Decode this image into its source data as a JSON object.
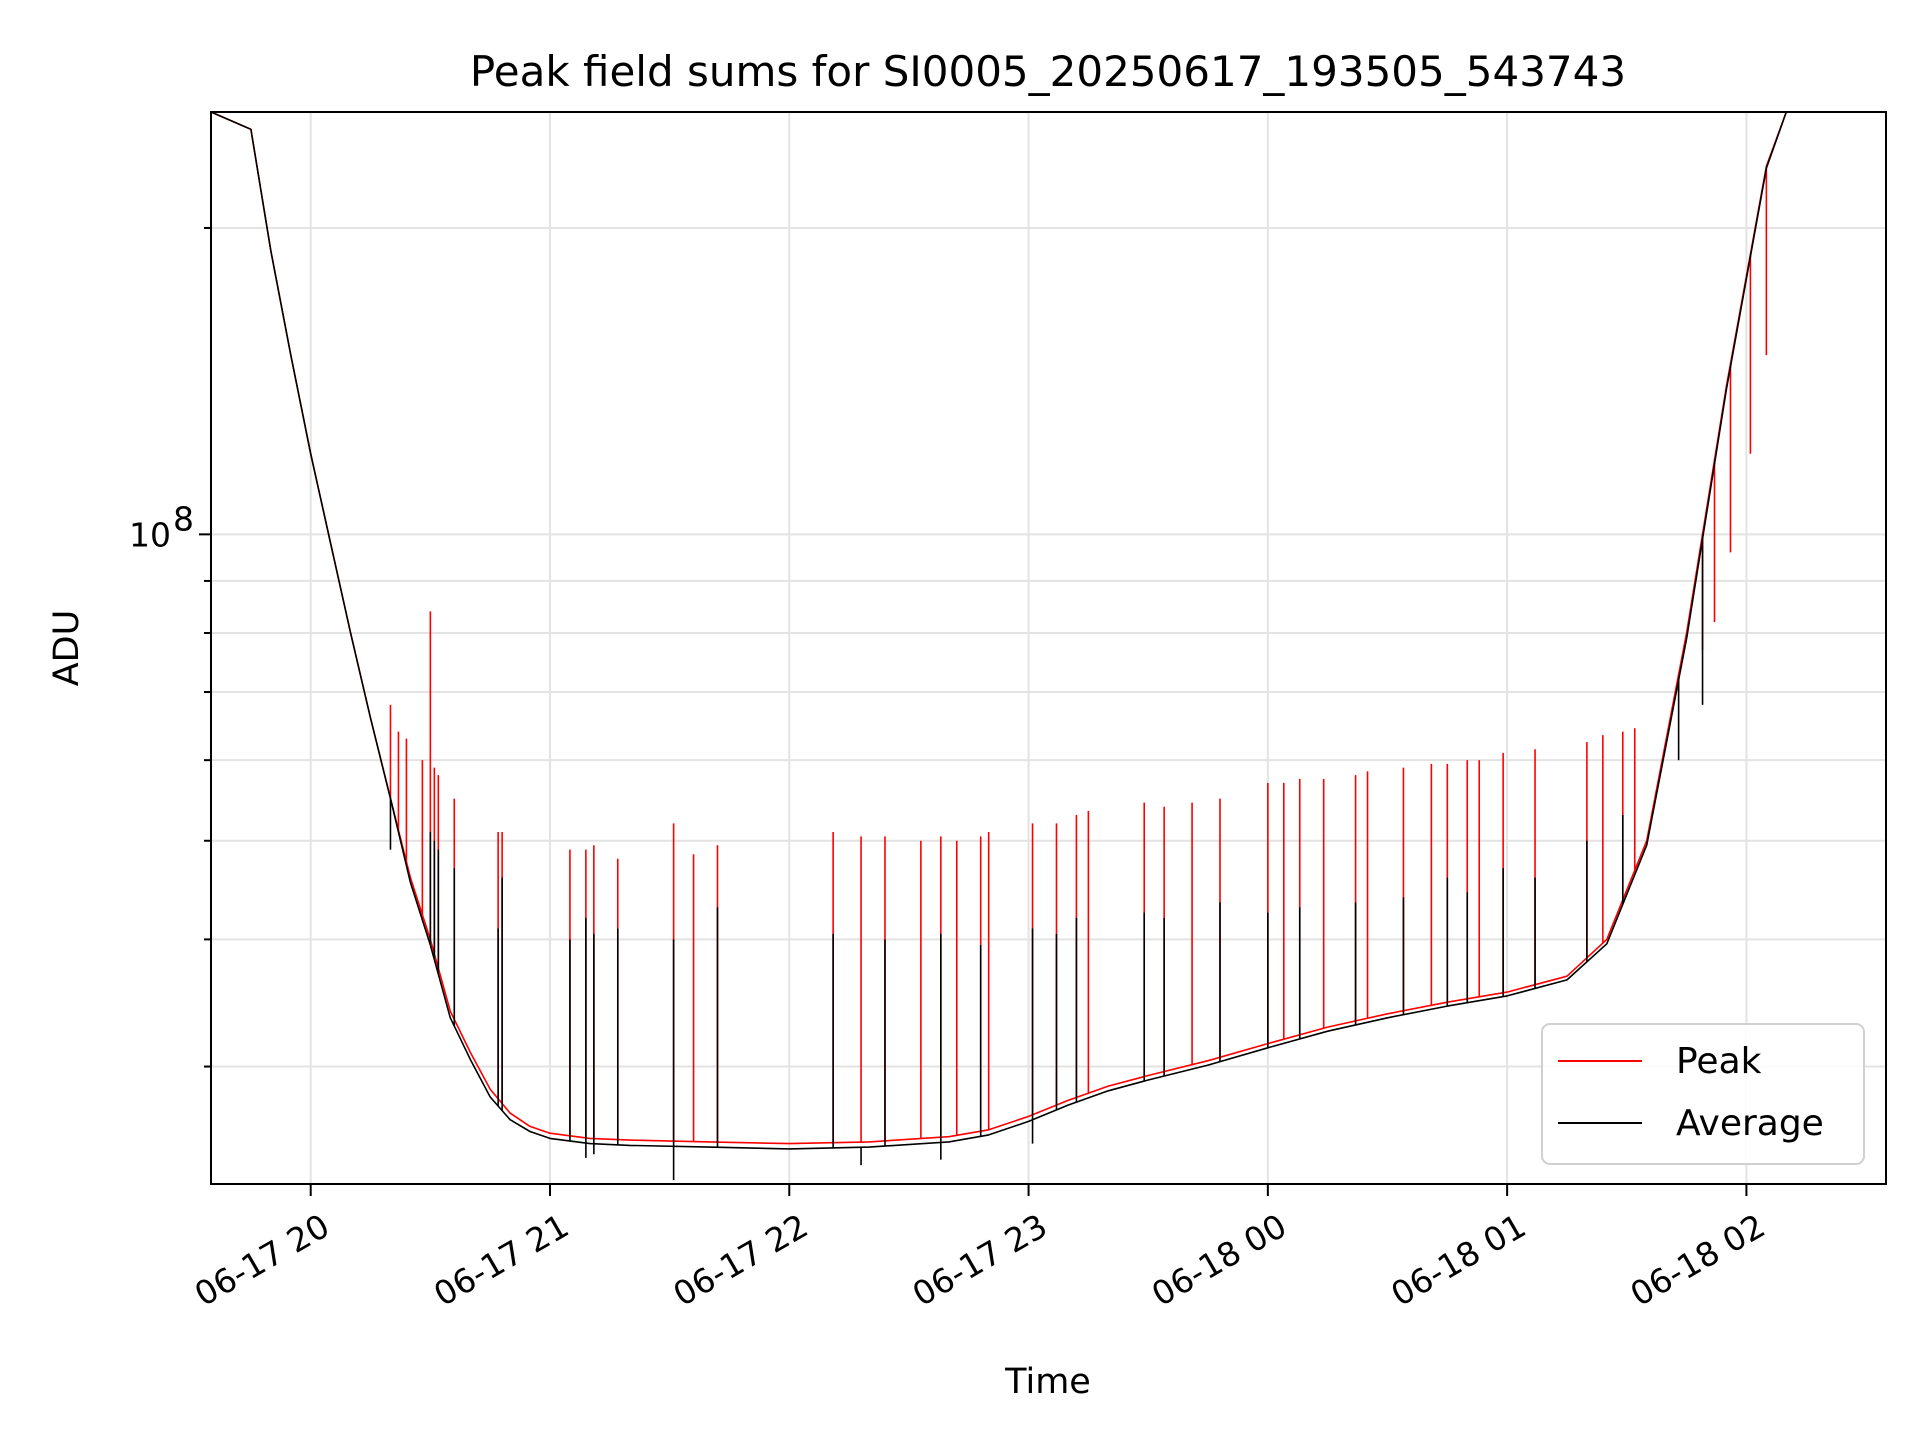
{
  "chart_data": {
    "type": "line",
    "title": "Peak field sums for SI0005_20250617_193505_543743",
    "xlabel": "Time",
    "ylabel": "ADU",
    "x_type": "time",
    "xlim": [
      "2025-06-17 19:35",
      "2025-06-18 02:35"
    ],
    "x_ticks": [
      {
        "value": "2025-06-17 20:00",
        "label": "06-17 20"
      },
      {
        "value": "2025-06-17 21:00",
        "label": "06-17 21"
      },
      {
        "value": "2025-06-17 22:00",
        "label": "06-17 22"
      },
      {
        "value": "2025-06-17 23:00",
        "label": "06-17 23"
      },
      {
        "value": "2025-06-18 00:00",
        "label": "06-18 00"
      },
      {
        "value": "2025-06-18 01:00",
        "label": "06-18 01"
      },
      {
        "value": "2025-06-18 02:00",
        "label": "06-18 02"
      }
    ],
    "y_scale": "log",
    "ylim": [
      23000000,
      260000000
    ],
    "y_ticks": [
      {
        "value": 100000000,
        "label_base": "10",
        "label_exp": "8"
      }
    ],
    "y_minor_ticks": [
      30000000,
      40000000,
      50000000,
      60000000,
      70000000,
      80000000,
      90000000,
      200000000
    ],
    "grid": true,
    "legend_position": "lower right",
    "series": [
      {
        "name": "Peak",
        "color": "#ff0000",
        "points": [
          [
            "2025-06-17 19:35",
            260000000
          ],
          [
            "2025-06-17 19:45",
            250000000
          ],
          [
            "2025-06-17 19:50",
            190000000
          ],
          [
            "2025-06-17 19:55",
            150000000
          ],
          [
            "2025-06-17 20:00",
            120000000
          ],
          [
            "2025-06-17 20:05",
            98000000
          ],
          [
            "2025-06-17 20:10",
            80000000
          ],
          [
            "2025-06-17 20:15",
            66000000
          ],
          [
            "2025-06-17 20:20",
            55000000
          ],
          [
            "2025-06-17 20:25",
            46000000
          ],
          [
            "2025-06-17 20:30",
            40000000
          ],
          [
            "2025-06-17 20:35",
            34000000
          ],
          [
            "2025-06-17 20:40",
            31000000
          ],
          [
            "2025-06-17 20:45",
            28500000
          ],
          [
            "2025-06-17 20:50",
            27000000
          ],
          [
            "2025-06-17 20:55",
            26200000
          ],
          [
            "2025-06-17 21:00",
            25800000
          ],
          [
            "2025-06-17 21:10",
            25500000
          ],
          [
            "2025-06-17 21:20",
            25400000
          ],
          [
            "2025-06-17 21:40",
            25300000
          ],
          [
            "2025-06-17 22:00",
            25200000
          ],
          [
            "2025-06-17 22:20",
            25300000
          ],
          [
            "2025-06-17 22:40",
            25600000
          ],
          [
            "2025-06-17 22:50",
            26000000
          ],
          [
            "2025-06-17 23:00",
            26800000
          ],
          [
            "2025-06-17 23:10",
            27800000
          ],
          [
            "2025-06-17 23:20",
            28700000
          ],
          [
            "2025-06-17 23:30",
            29400000
          ],
          [
            "2025-06-17 23:45",
            30400000
          ],
          [
            "2025-06-18 00:00",
            31600000
          ],
          [
            "2025-06-18 00:15",
            32800000
          ],
          [
            "2025-06-18 00:30",
            33800000
          ],
          [
            "2025-06-18 00:45",
            34700000
          ],
          [
            "2025-06-18 01:00",
            35500000
          ],
          [
            "2025-06-18 01:15",
            36800000
          ],
          [
            "2025-06-18 01:25",
            40000000
          ],
          [
            "2025-06-18 01:35",
            50000000
          ],
          [
            "2025-06-18 01:45",
            80000000
          ],
          [
            "2025-06-18 01:55",
            140000000
          ],
          [
            "2025-06-18 02:05",
            230000000
          ],
          [
            "2025-06-18 02:10",
            260000000
          ],
          [
            "2025-06-18 02:35",
            260000000
          ]
        ],
        "spikes": [
          [
            "2025-06-17 20:20",
            68000000
          ],
          [
            "2025-06-17 20:22",
            64000000
          ],
          [
            "2025-06-17 20:24",
            63000000
          ],
          [
            "2025-06-17 20:28",
            60000000
          ],
          [
            "2025-06-17 20:30",
            84000000
          ],
          [
            "2025-06-17 20:31",
            59000000
          ],
          [
            "2025-06-17 20:32",
            58000000
          ],
          [
            "2025-06-17 20:36",
            55000000
          ],
          [
            "2025-06-17 20:47",
            51000000
          ],
          [
            "2025-06-17 20:48",
            51000000
          ],
          [
            "2025-06-17 21:05",
            49000000
          ],
          [
            "2025-06-17 21:09",
            49000000
          ],
          [
            "2025-06-17 21:11",
            49500000
          ],
          [
            "2025-06-17 21:17",
            48000000
          ],
          [
            "2025-06-17 21:31",
            52000000
          ],
          [
            "2025-06-17 21:36",
            48500000
          ],
          [
            "2025-06-17 21:42",
            49500000
          ],
          [
            "2025-06-17 22:11",
            51000000
          ],
          [
            "2025-06-17 22:18",
            50500000
          ],
          [
            "2025-06-17 22:24",
            50500000
          ],
          [
            "2025-06-17 22:33",
            50000000
          ],
          [
            "2025-06-17 22:38",
            50500000
          ],
          [
            "2025-06-17 22:42",
            50000000
          ],
          [
            "2025-06-17 22:48",
            50500000
          ],
          [
            "2025-06-17 22:50",
            51000000
          ],
          [
            "2025-06-17 23:01",
            52000000
          ],
          [
            "2025-06-17 23:07",
            52000000
          ],
          [
            "2025-06-17 23:12",
            53000000
          ],
          [
            "2025-06-17 23:15",
            53500000
          ],
          [
            "2025-06-17 23:29",
            54500000
          ],
          [
            "2025-06-17 23:34",
            54000000
          ],
          [
            "2025-06-17 23:41",
            54500000
          ],
          [
            "2025-06-17 23:48",
            55000000
          ],
          [
            "2025-06-18 00:00",
            57000000
          ],
          [
            "2025-06-18 00:04",
            57000000
          ],
          [
            "2025-06-18 00:08",
            57500000
          ],
          [
            "2025-06-18 00:14",
            57500000
          ],
          [
            "2025-06-18 00:22",
            58000000
          ],
          [
            "2025-06-18 00:25",
            58500000
          ],
          [
            "2025-06-18 00:34",
            59000000
          ],
          [
            "2025-06-18 00:41",
            59500000
          ],
          [
            "2025-06-18 00:45",
            59500000
          ],
          [
            "2025-06-18 00:50",
            60000000
          ],
          [
            "2025-06-18 00:53",
            60000000
          ],
          [
            "2025-06-18 00:59",
            61000000
          ],
          [
            "2025-06-18 01:07",
            61500000
          ],
          [
            "2025-06-18 01:20",
            62500000
          ],
          [
            "2025-06-18 01:24",
            63500000
          ],
          [
            "2025-06-18 01:29",
            64000000
          ],
          [
            "2025-06-18 01:32",
            64500000
          ],
          [
            "2025-06-18 01:43",
            70000000
          ],
          [
            "2025-06-18 01:49",
            77000000
          ],
          [
            "2025-06-18 01:52",
            82000000
          ],
          [
            "2025-06-18 01:56",
            96000000
          ],
          [
            "2025-06-18 02:01",
            120000000
          ],
          [
            "2025-06-18 02:05",
            150000000
          ]
        ]
      },
      {
        "name": "Average",
        "color": "#000000",
        "points": [
          [
            "2025-06-17 19:35",
            260000000
          ],
          [
            "2025-06-17 19:45",
            250000000
          ],
          [
            "2025-06-17 19:50",
            190000000
          ],
          [
            "2025-06-17 19:55",
            150000000
          ],
          [
            "2025-06-17 20:00",
            120000000
          ],
          [
            "2025-06-17 20:05",
            98000000
          ],
          [
            "2025-06-17 20:10",
            80000000
          ],
          [
            "2025-06-17 20:15",
            66000000
          ],
          [
            "2025-06-17 20:20",
            55000000
          ],
          [
            "2025-06-17 20:25",
            45500000
          ],
          [
            "2025-06-17 20:30",
            39500000
          ],
          [
            "2025-06-17 20:35",
            33500000
          ],
          [
            "2025-06-17 20:40",
            30500000
          ],
          [
            "2025-06-17 20:45",
            28000000
          ],
          [
            "2025-06-17 20:50",
            26600000
          ],
          [
            "2025-06-17 20:55",
            25900000
          ],
          [
            "2025-06-17 21:00",
            25500000
          ],
          [
            "2025-06-17 21:10",
            25200000
          ],
          [
            "2025-06-17 21:20",
            25100000
          ],
          [
            "2025-06-17 21:40",
            25000000
          ],
          [
            "2025-06-17 22:00",
            24900000
          ],
          [
            "2025-06-17 22:20",
            25000000
          ],
          [
            "2025-06-17 22:40",
            25300000
          ],
          [
            "2025-06-17 22:50",
            25700000
          ],
          [
            "2025-06-17 23:00",
            26500000
          ],
          [
            "2025-06-17 23:10",
            27500000
          ],
          [
            "2025-06-17 23:20",
            28400000
          ],
          [
            "2025-06-17 23:30",
            29100000
          ],
          [
            "2025-06-17 23:45",
            30100000
          ],
          [
            "2025-06-18 00:00",
            31300000
          ],
          [
            "2025-06-18 00:15",
            32500000
          ],
          [
            "2025-06-18 00:30",
            33500000
          ],
          [
            "2025-06-18 00:45",
            34400000
          ],
          [
            "2025-06-18 01:00",
            35200000
          ],
          [
            "2025-06-18 01:15",
            36500000
          ],
          [
            "2025-06-18 01:25",
            39600000
          ],
          [
            "2025-06-18 01:35",
            49500000
          ],
          [
            "2025-06-18 01:45",
            79000000
          ],
          [
            "2025-06-18 01:55",
            139000000
          ],
          [
            "2025-06-18 02:05",
            229000000
          ],
          [
            "2025-06-18 02:10",
            260000000
          ],
          [
            "2025-06-18 02:35",
            260000000
          ]
        ],
        "spikes": [
          [
            "2025-06-17 20:20",
            49000000
          ],
          [
            "2025-06-17 20:30",
            51000000
          ],
          [
            "2025-06-17 20:31",
            50000000
          ],
          [
            "2025-06-17 20:32",
            49000000
          ],
          [
            "2025-06-17 20:36",
            47000000
          ],
          [
            "2025-06-17 20:47",
            41000000
          ],
          [
            "2025-06-17 20:48",
            46000000
          ],
          [
            "2025-06-17 21:05",
            40000000
          ],
          [
            "2025-06-17 21:09",
            42000000
          ],
          [
            "2025-06-17 21:11",
            40500000
          ],
          [
            "2025-06-17 21:17",
            41000000
          ],
          [
            "2025-06-17 21:31",
            40000000
          ],
          [
            "2025-06-17 21:42",
            43000000
          ],
          [
            "2025-06-17 22:11",
            40500000
          ],
          [
            "2025-06-17 22:24",
            40000000
          ],
          [
            "2025-06-17 22:38",
            40500000
          ],
          [
            "2025-06-17 22:48",
            39500000
          ],
          [
            "2025-06-17 23:01",
            41000000
          ],
          [
            "2025-06-17 23:07",
            40500000
          ],
          [
            "2025-06-17 23:12",
            42000000
          ],
          [
            "2025-06-17 23:29",
            42500000
          ],
          [
            "2025-06-17 23:34",
            42000000
          ],
          [
            "2025-06-17 23:48",
            43500000
          ],
          [
            "2025-06-18 00:00",
            42500000
          ],
          [
            "2025-06-18 00:08",
            43000000
          ],
          [
            "2025-06-18 00:22",
            43500000
          ],
          [
            "2025-06-18 00:34",
            44000000
          ],
          [
            "2025-06-18 00:45",
            46000000
          ],
          [
            "2025-06-18 00:50",
            44500000
          ],
          [
            "2025-06-18 00:59",
            47000000
          ],
          [
            "2025-06-18 01:07",
            46000000
          ],
          [
            "2025-06-18 01:20",
            50000000
          ],
          [
            "2025-06-18 01:29",
            53000000
          ],
          [
            "2025-06-18 01:43",
            60000000
          ],
          [
            "2025-06-18 01:49",
            68000000
          ]
        ],
        "dips": [
          [
            "2025-06-17 21:09",
            24400000
          ],
          [
            "2025-06-17 21:11",
            24600000
          ],
          [
            "2025-06-17 21:31",
            23200000
          ],
          [
            "2025-06-17 22:18",
            24000000
          ],
          [
            "2025-06-17 22:38",
            24300000
          ],
          [
            "2025-06-17 23:01",
            25200000
          ]
        ]
      }
    ]
  }
}
